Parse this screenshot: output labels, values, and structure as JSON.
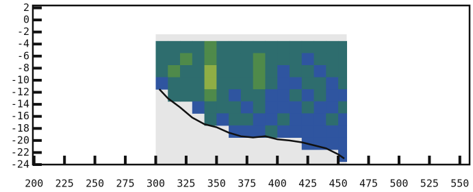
{
  "chart_data": {
    "type": "heatmap",
    "xlim": [
      199,
      558
    ],
    "ylim": [
      -24,
      2.4
    ],
    "xticks": [
      200,
      225,
      250,
      275,
      300,
      325,
      350,
      375,
      400,
      425,
      450,
      475,
      500,
      525,
      550
    ],
    "yticks": [
      2,
      0,
      -2,
      -4,
      -6,
      -8,
      -10,
      -12,
      -14,
      -16,
      -18,
      -20,
      -22,
      -24
    ],
    "colormap": [
      "#1d3c8f",
      "#2f55a0",
      "#2e6d6e",
      "#4f8a4a",
      "#8fae45"
    ],
    "x_edges": [
      300,
      310,
      320,
      330,
      340,
      350,
      360,
      370,
      380,
      390,
      400,
      410,
      420,
      430,
      440,
      450,
      457
    ],
    "y_edges": [
      -3.5,
      -5.5,
      -7.5,
      -9.5,
      -11.5,
      -13.5,
      -15.5,
      -17.5,
      -19.5,
      -21.5,
      -23.5
    ],
    "values": [
      [
        2,
        2,
        2,
        2,
        3,
        2,
        2,
        2,
        2,
        2,
        2,
        2,
        2,
        2,
        2,
        2
      ],
      [
        2,
        2,
        3,
        2,
        3,
        2,
        2,
        2,
        3,
        2,
        2,
        2,
        1,
        2,
        2,
        2
      ],
      [
        2,
        3,
        2,
        2,
        4,
        2,
        2,
        2,
        3,
        2,
        1,
        2,
        2,
        1,
        2,
        2
      ],
      [
        1,
        2,
        2,
        2,
        4,
        2,
        2,
        2,
        3,
        2,
        1,
        1,
        2,
        2,
        1,
        2
      ],
      [
        null,
        2,
        2,
        2,
        3,
        2,
        1,
        2,
        2,
        1,
        1,
        2,
        1,
        2,
        1,
        1
      ],
      [
        null,
        null,
        null,
        1,
        2,
        2,
        2,
        1,
        2,
        1,
        1,
        1,
        2,
        1,
        1,
        2
      ],
      [
        null,
        null,
        null,
        null,
        2,
        1,
        2,
        2,
        1,
        1,
        2,
        1,
        1,
        1,
        2,
        1
      ],
      [
        null,
        null,
        null,
        null,
        null,
        null,
        1,
        1,
        1,
        2,
        1,
        1,
        1,
        1,
        1,
        1
      ],
      [
        null,
        null,
        null,
        null,
        null,
        null,
        null,
        null,
        null,
        null,
        null,
        null,
        1,
        1,
        1,
        1
      ],
      [
        null,
        null,
        null,
        null,
        null,
        null,
        null,
        null,
        null,
        null,
        null,
        null,
        null,
        null,
        null,
        1
      ]
    ],
    "line": {
      "color": "#111111",
      "x": [
        303,
        310,
        320,
        330,
        340,
        350,
        360,
        370,
        380,
        390,
        400,
        410,
        420,
        430,
        440,
        450,
        455
      ],
      "y": [
        -11.5,
        -13,
        -14.5,
        -16.2,
        -17.3,
        -17.8,
        -18.7,
        -19.3,
        -19.5,
        -19.3,
        -19.8,
        -20,
        -20.3,
        -20.8,
        -21.3,
        -22.3,
        -23
      ]
    }
  }
}
